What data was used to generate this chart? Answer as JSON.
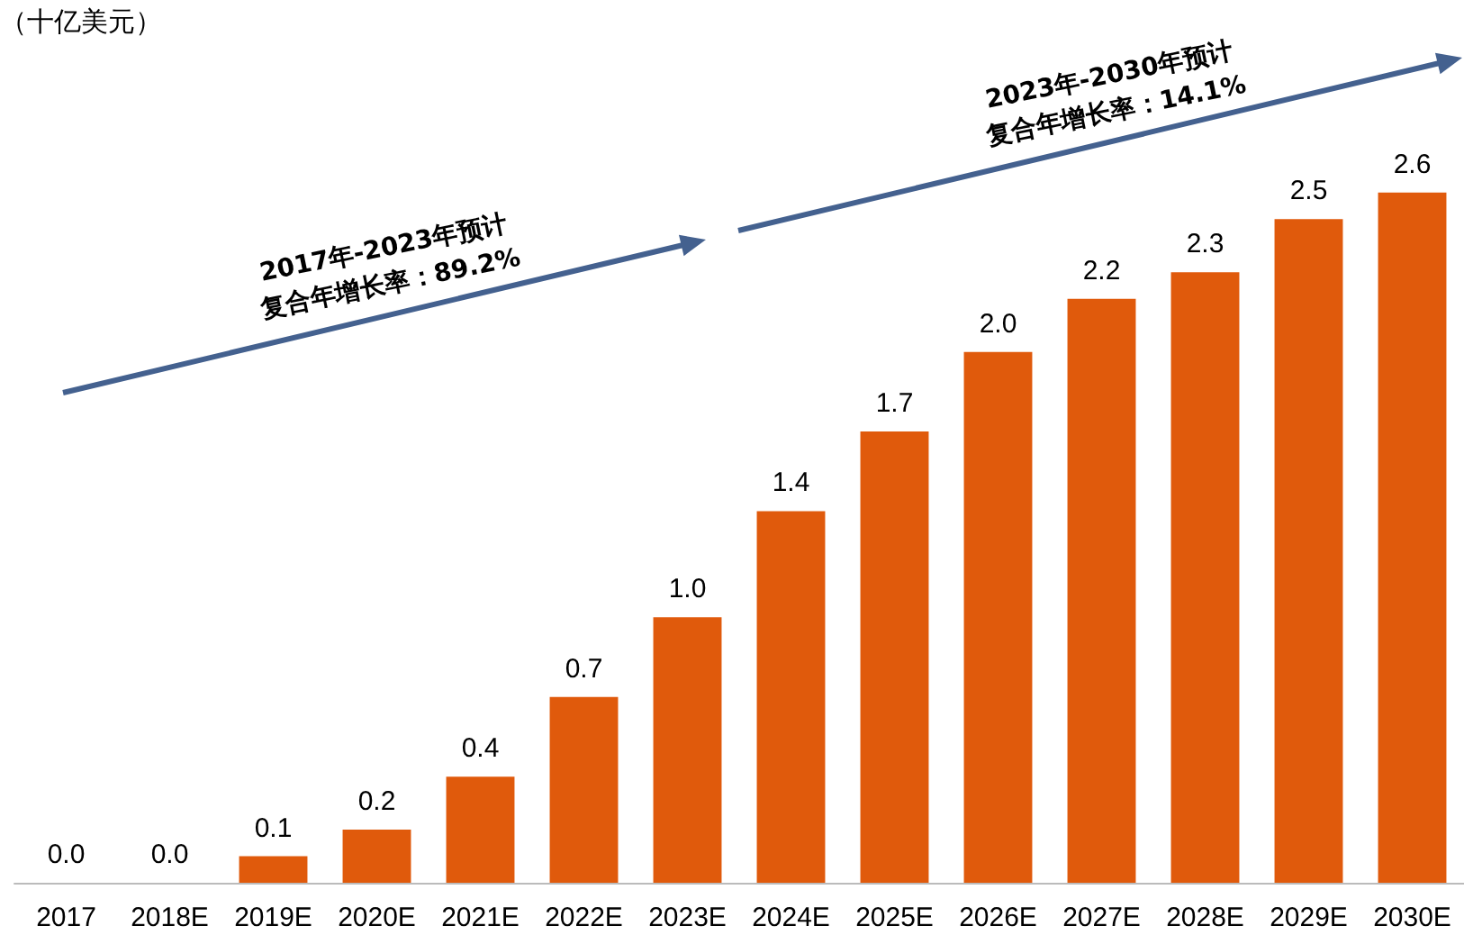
{
  "chart_data": {
    "type": "bar",
    "categories": [
      "2017",
      "2018E",
      "2019E",
      "2020E",
      "2021E",
      "2022E",
      "2023E",
      "2024E",
      "2025E",
      "2026E",
      "2027E",
      "2028E",
      "2029E",
      "2030E"
    ],
    "values": [
      0.0,
      0.0,
      0.1,
      0.2,
      0.4,
      0.7,
      1.0,
      1.4,
      1.7,
      2.0,
      2.2,
      2.3,
      2.5,
      2.6
    ],
    "value_labels": [
      "0.0",
      "0.0",
      "0.1",
      "0.2",
      "0.4",
      "0.7",
      "1.0",
      "1.4",
      "1.7",
      "2.0",
      "2.2",
      "2.3",
      "2.5",
      "2.6"
    ],
    "color": "#e05a0c",
    "annotations": [
      "（十亿美元）",
      "2017年-2023年预计\n复合年增长率：89.2%",
      "2023年-2030年预计\n复合年增长率：14.1%"
    ]
  }
}
